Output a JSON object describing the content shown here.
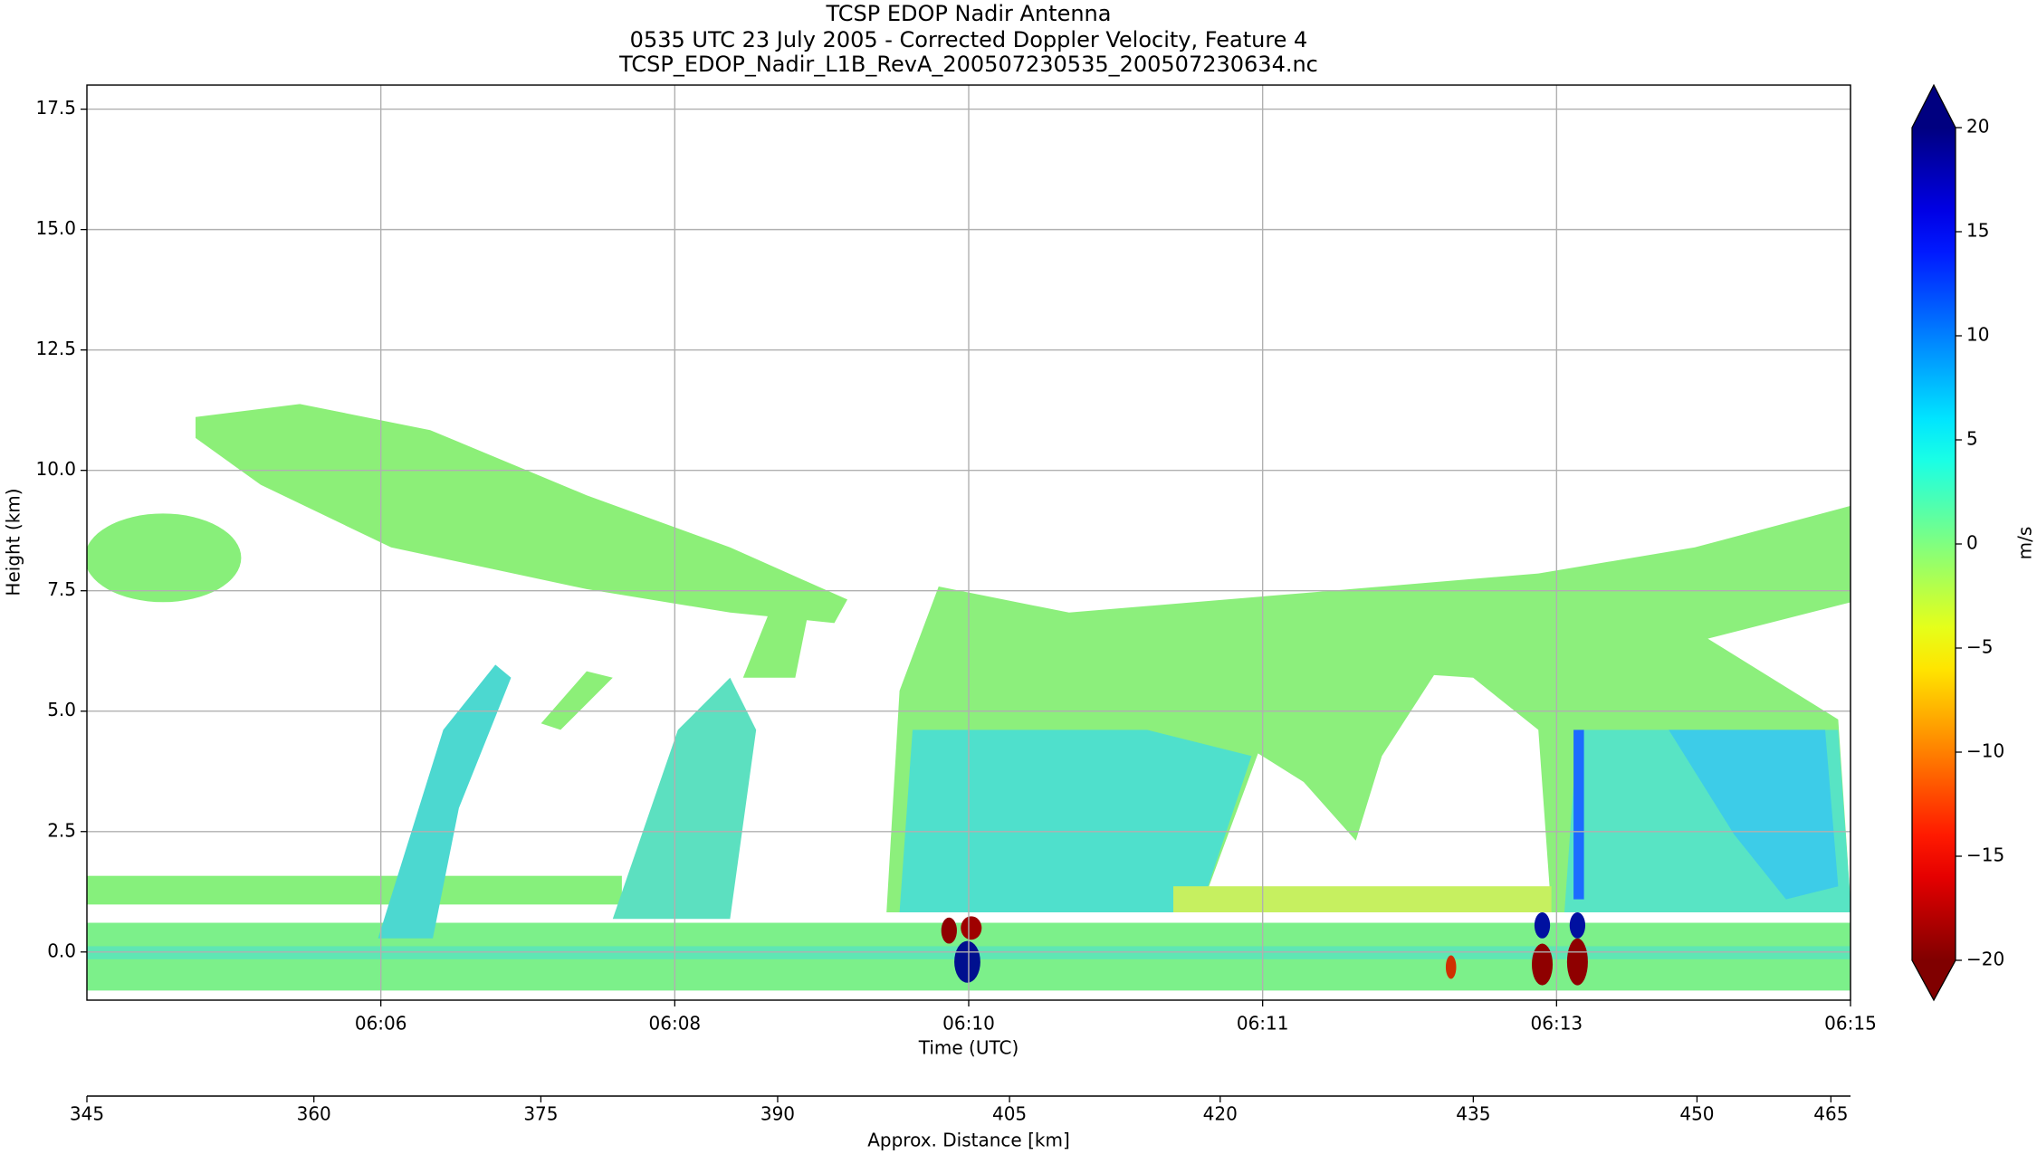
{
  "chart_data": {
    "type": "radar-curtain",
    "title_lines": [
      "TCSP EDOP Nadir Antenna",
      "0535 UTC 23 July 2005 - Corrected Doppler Velocity, Feature 4",
      "TCSP_EDOP_Nadir_L1B_RevA_200507230535_200507230634.nc"
    ],
    "xlabel": "Time (UTC)",
    "ylabel": "Height (km)",
    "xlim": [
      4.2,
      15.0
    ],
    "xticks": [
      {
        "value": 6.0,
        "label": "06:06"
      },
      {
        "value": 7.8,
        "label": "06:08"
      },
      {
        "value": 9.6,
        "label": "06:10"
      },
      {
        "value": 11.4,
        "label": "06:11"
      },
      {
        "value": 13.2,
        "label": "06:13"
      },
      {
        "value": 15.0,
        "label": "06:15"
      }
    ],
    "ylim": [
      -1.0,
      18.0
    ],
    "yticks": [
      {
        "value": 0,
        "label": "0.0"
      },
      2.5,
      {
        "value": 5,
        "label": "5.0"
      },
      7.5,
      {
        "value": 10,
        "label": "10.0"
      },
      12.5,
      {
        "value": 15,
        "label": "15.0"
      },
      17.5
    ],
    "grid": true,
    "distance_axis": {
      "label": "Approx. Distance [km]",
      "ticks": [
        {
          "km": 345,
          "time": 4.2
        },
        {
          "km": 360,
          "time": 5.59
        },
        {
          "km": 375,
          "time": 6.98
        },
        {
          "km": 390,
          "time": 8.43
        },
        {
          "km": 405,
          "time": 9.85
        },
        {
          "km": 420,
          "time": 11.14
        },
        {
          "km": 435,
          "time": 12.69
        },
        {
          "km": 450,
          "time": 14.06
        },
        {
          "km": 465,
          "time": 14.88
        }
      ]
    },
    "colorbar": {
      "label": "m/s",
      "colormap": "jet_r",
      "clim": [
        -20,
        20
      ],
      "extend": "both",
      "ticks": [
        {
          "value": -20,
          "label": "−20"
        },
        {
          "value": -15,
          "label": "−15"
        },
        {
          "value": -10,
          "label": "−10"
        },
        {
          "value": -5,
          "label": "−5"
        },
        0,
        5,
        10,
        15,
        20
      ]
    }
  }
}
